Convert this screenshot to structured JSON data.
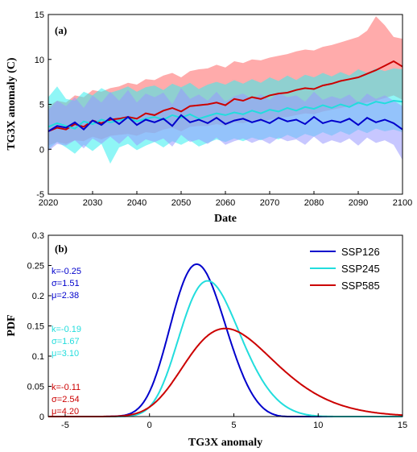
{
  "chart_data": [
    {
      "type": "line",
      "panel_label": "(a)",
      "xlabel": "Date",
      "ylabel": "TG3X anomaly (C)",
      "xlim": [
        2020,
        2100
      ],
      "ylim": [
        -5,
        15
      ],
      "xticks": [
        "2020",
        "2030",
        "2040",
        "2050",
        "2060",
        "2070",
        "2080",
        "2090",
        "2100"
      ],
      "yticks": [
        "-5",
        "0",
        "5",
        "10",
        "15"
      ],
      "x": [
        2020,
        2022,
        2024,
        2026,
        2028,
        2030,
        2032,
        2034,
        2036,
        2038,
        2040,
        2042,
        2044,
        2046,
        2048,
        2050,
        2052,
        2054,
        2056,
        2058,
        2060,
        2062,
        2064,
        2066,
        2068,
        2070,
        2072,
        2074,
        2076,
        2078,
        2080,
        2082,
        2084,
        2086,
        2088,
        2090,
        2092,
        2094,
        2096,
        2098,
        2100
      ],
      "series": [
        {
          "id": "SSP585",
          "color": "#cc0000",
          "band_color": "#ff6666",
          "mean": [
            2.0,
            2.4,
            2.2,
            2.8,
            2.5,
            3.2,
            2.9,
            3.3,
            3.4,
            3.6,
            3.4,
            4.0,
            3.8,
            4.3,
            4.6,
            4.2,
            4.8,
            4.9,
            5.0,
            5.2,
            4.9,
            5.6,
            5.4,
            5.8,
            5.6,
            6.0,
            6.2,
            6.3,
            6.6,
            6.8,
            6.7,
            7.1,
            7.3,
            7.6,
            7.8,
            8.0,
            8.4,
            8.8,
            9.3,
            9.8,
            9.2
          ],
          "upper": [
            4.8,
            5.4,
            5.2,
            6.0,
            5.8,
            6.6,
            6.4,
            6.8,
            7.0,
            7.4,
            7.2,
            7.8,
            7.7,
            8.2,
            8.5,
            8.0,
            8.7,
            8.9,
            9.0,
            9.4,
            9.1,
            9.8,
            9.6,
            10.0,
            9.9,
            10.2,
            10.4,
            10.6,
            10.9,
            11.1,
            11.0,
            11.4,
            11.6,
            11.9,
            12.2,
            12.5,
            13.2,
            14.8,
            13.8,
            12.5,
            12.3
          ],
          "lower": [
            0.4,
            0.8,
            0.6,
            1.0,
            0.9,
            1.4,
            1.1,
            1.5,
            1.6,
            1.7,
            1.5,
            1.9,
            1.8,
            2.2,
            2.4,
            2.0,
            2.5,
            2.6,
            2.6,
            2.8,
            2.6,
            3.0,
            2.9,
            3.2,
            3.0,
            3.3,
            3.5,
            3.6,
            3.8,
            4.0,
            3.9,
            4.2,
            4.4,
            4.6,
            4.8,
            5.0,
            5.2,
            5.4,
            5.7,
            6.0,
            5.5
          ]
        },
        {
          "id": "SSP245",
          "color": "#22dddd",
          "band_color": "#33eeee",
          "mean": [
            2.5,
            2.9,
            2.6,
            2.3,
            3.1,
            2.8,
            3.3,
            3.0,
            3.2,
            3.5,
            3.1,
            3.4,
            3.6,
            3.3,
            3.8,
            3.5,
            3.9,
            3.4,
            3.7,
            4.0,
            3.8,
            4.1,
            3.9,
            4.3,
            4.0,
            4.4,
            4.2,
            4.6,
            4.3,
            4.7,
            4.5,
            4.9,
            4.6,
            5.0,
            4.7,
            5.2,
            4.9,
            5.3,
            5.1,
            5.4,
            5.3
          ],
          "upper": [
            5.8,
            7.0,
            5.6,
            5.4,
            6.4,
            6.0,
            6.8,
            6.3,
            6.6,
            7.0,
            6.4,
            6.9,
            7.1,
            6.6,
            7.3,
            6.9,
            7.4,
            6.7,
            7.2,
            7.5,
            7.2,
            7.7,
            7.3,
            7.8,
            7.4,
            8.0,
            7.6,
            8.2,
            7.7,
            8.3,
            8.0,
            8.5,
            8.1,
            8.6,
            8.2,
            8.9,
            8.5,
            9.0,
            8.7,
            9.0,
            8.9
          ],
          "lower": [
            0.0,
            0.8,
            0.2,
            -0.5,
            0.5,
            -0.2,
            0.6,
            -1.6,
            0.2,
            0.6,
            -0.1,
            0.4,
            0.8,
            0.2,
            0.9,
            0.5,
            1.0,
            0.3,
            0.7,
            1.1,
            0.8,
            1.2,
            0.9,
            1.3,
            1.0,
            1.4,
            1.1,
            1.6,
            1.2,
            1.7,
            1.4,
            1.9,
            1.5,
            2.0,
            1.6,
            2.2,
            1.8,
            2.3,
            2.0,
            2.2,
            1.9
          ]
        },
        {
          "id": "SSP126",
          "color": "#0000cc",
          "band_color": "#9999ff",
          "mean": [
            2.0,
            2.6,
            2.4,
            3.0,
            2.2,
            3.2,
            2.7,
            3.5,
            2.8,
            3.6,
            2.7,
            3.3,
            3.0,
            3.4,
            2.6,
            3.8,
            3.0,
            3.3,
            2.9,
            3.5,
            2.8,
            3.2,
            3.4,
            3.0,
            3.3,
            2.9,
            3.5,
            3.1,
            3.3,
            2.8,
            3.6,
            2.9,
            3.2,
            3.0,
            3.4,
            2.7,
            3.5,
            3.0,
            3.3,
            2.9,
            2.2
          ],
          "upper": [
            4.4,
            5.4,
            4.8,
            5.8,
            4.6,
            6.0,
            5.2,
            6.4,
            5.4,
            6.6,
            5.2,
            6.2,
            5.8,
            6.3,
            5.0,
            6.8,
            5.6,
            6.1,
            5.4,
            6.4,
            5.3,
            5.9,
            6.2,
            5.6,
            6.1,
            5.5,
            6.3,
            5.8,
            6.0,
            5.3,
            6.4,
            5.5,
            5.9,
            5.6,
            6.1,
            5.2,
            6.2,
            5.6,
            6.0,
            5.4,
            4.8
          ],
          "lower": [
            -0.2,
            0.6,
            0.4,
            1.0,
            0.1,
            1.2,
            0.6,
            1.4,
            0.6,
            1.5,
            0.4,
            1.1,
            0.8,
            1.2,
            0.3,
            1.6,
            0.8,
            1.1,
            0.6,
            1.3,
            0.5,
            0.9,
            1.2,
            0.7,
            1.1,
            0.6,
            1.3,
            0.9,
            1.1,
            0.5,
            1.4,
            0.6,
            1.0,
            0.7,
            1.2,
            0.4,
            1.3,
            0.7,
            1.0,
            0.5,
            -1.2
          ]
        }
      ]
    },
    {
      "type": "line",
      "panel_label": "(b)",
      "xlabel": "TG3X anomaly",
      "ylabel": "PDF",
      "xlim": [
        -6,
        15
      ],
      "ylim": [
        0,
        0.3
      ],
      "xticks": [
        "-5",
        "0",
        "5",
        "10",
        "15"
      ],
      "yticks": [
        "0",
        "0.05",
        "0.1",
        "0.15",
        "0.2",
        "0.25",
        "0.3"
      ],
      "series": [
        {
          "name": "SSP126",
          "color": "#0000cc",
          "k": -0.25,
          "sigma": 1.51,
          "mu": 2.38,
          "k_label": "k=-0.25",
          "sigma_label": "σ=1.51",
          "mu_label": "μ=2.38"
        },
        {
          "name": "SSP245",
          "color": "#22dddd",
          "k": -0.19,
          "sigma": 1.67,
          "mu": 3.1,
          "k_label": "k=-0.19",
          "sigma_label": "σ=1.67",
          "mu_label": "μ=3.10"
        },
        {
          "name": "SSP585",
          "color": "#cc0000",
          "k": -0.11,
          "sigma": 2.54,
          "mu": 4.2,
          "k_label": "k=-0.11",
          "sigma_label": "σ=2.54",
          "mu_label": "μ=4.20"
        }
      ]
    }
  ]
}
